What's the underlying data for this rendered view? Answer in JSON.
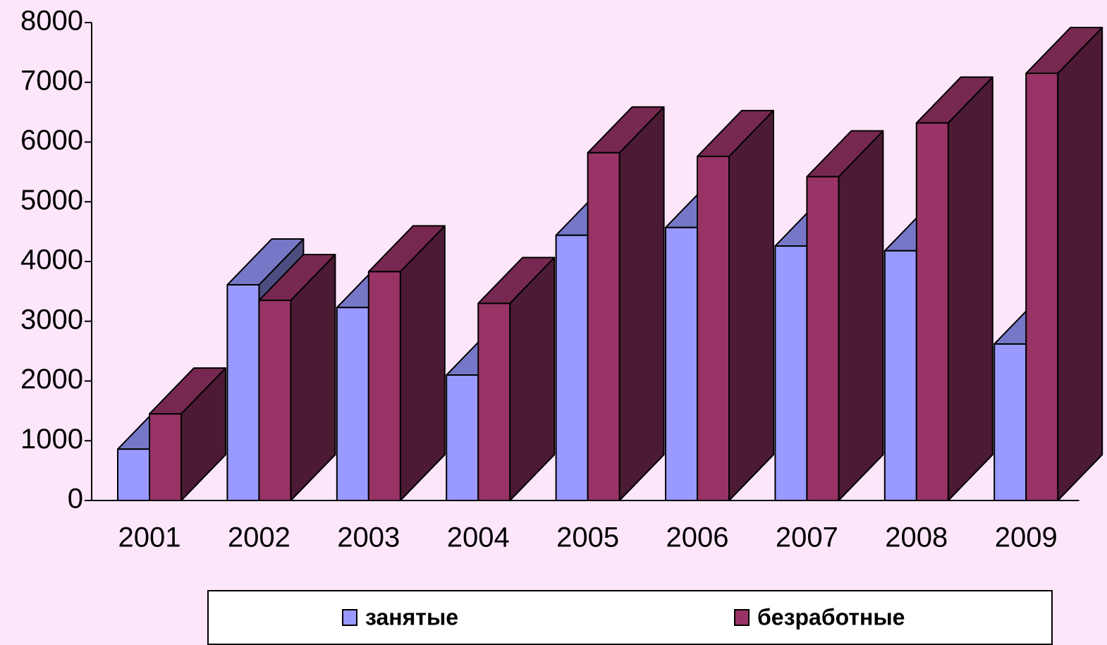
{
  "chart_data": {
    "type": "bar3d",
    "categories": [
      "2001",
      "2002",
      "2003",
      "2004",
      "2005",
      "2006",
      "2007",
      "2008",
      "2009"
    ],
    "series": [
      {
        "name": "занятые",
        "color": "#9999ff",
        "values": [
          860,
          3610,
          3230,
          2100,
          4440,
          4570,
          4260,
          4180,
          2620
        ]
      },
      {
        "name": "безработные",
        "color": "#993366",
        "values": [
          1450,
          3350,
          3830,
          3300,
          5820,
          5760,
          5420,
          6320,
          7150
        ]
      }
    ],
    "ylim": [
      0,
      8000
    ],
    "yticks": [
      0,
      1000,
      2000,
      3000,
      4000,
      5000,
      6000,
      7000,
      8000
    ],
    "legend": "bottom"
  }
}
